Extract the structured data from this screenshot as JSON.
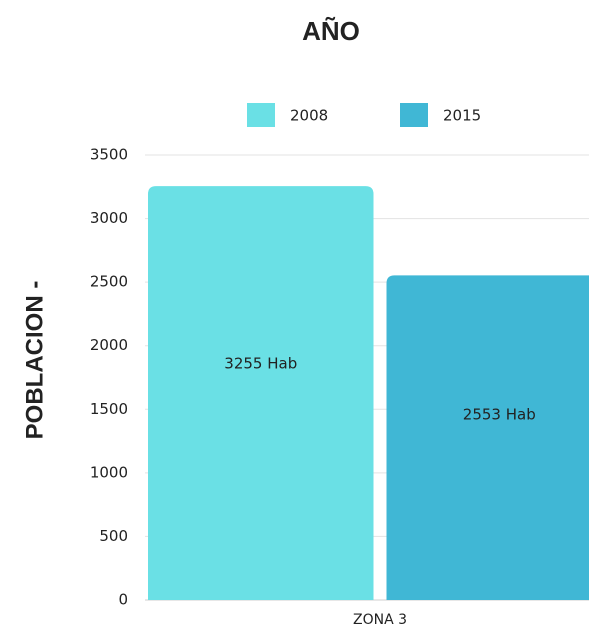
{
  "chart_data": {
    "type": "bar",
    "title": "AÑO",
    "y_label": "POBLACION -",
    "categories": [
      "ZONA 3"
    ],
    "series": [
      {
        "name": "2008",
        "color": "#6ae0e5",
        "values": [
          3255
        ],
        "value_labels": [
          "3255 Hab"
        ]
      },
      {
        "name": "2015",
        "color": "#40b7d5",
        "values": [
          2553
        ],
        "value_labels": [
          "2553 Hab"
        ]
      }
    ],
    "ylim": [
      0,
      3500
    ],
    "yticks": [
      0,
      500,
      1000,
      1500,
      2000,
      2500,
      3000,
      3500
    ],
    "grid": true,
    "legend": "top"
  }
}
